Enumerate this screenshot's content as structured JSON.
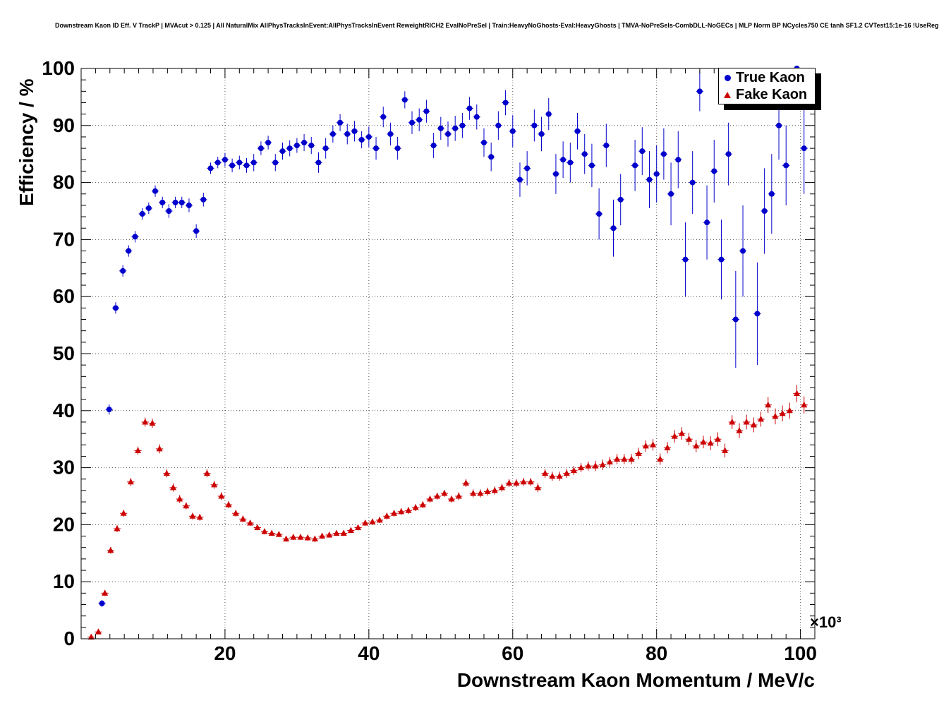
{
  "header": {
    "title": "Downstream Kaon ID Eff. V TrackP | MVAcut > 0.125 | All NaturalMix AllPhysTracksInEvent:AllPhysTracksInEvent ReweightRICH2 EvalNoPreSel | Train:HeavyNoGhosts-Eval:HeavyGhosts | TMVA-NoPreSels-CombDLL-NoGECs | MLP Norm BP NCycles750 CE tanh SF1.2 CVTest15:1e-16 !UseReg"
  },
  "chart_data": {
    "type": "scatter",
    "title": "Downstream Kaon ID Eff. V TrackP | MVAcut > 0.125 | All NaturalMix AllPhysTracksInEvent:AllPhysTracksInEvent ReweightRICH2 EvalNoPreSel | Train:HeavyNoGhosts-Eval:HeavyGhosts | TMVA-NoPreSels-CombDLL-NoGECs | MLP Norm BP NCycles750 CE tanh SF1.2 CVTest15:1e-16 !UseReg",
    "xlabel": "Downstream Kaon Momentum / MeV/c",
    "ylabel": "Efficiency / %",
    "x_multiplier_label": "×10³",
    "x_units_note": "x axis values are in units of 10^3 MeV/c",
    "xlim": [
      0,
      102
    ],
    "ylim": [
      0,
      100
    ],
    "x_ticks": [
      20,
      40,
      60,
      80,
      100
    ],
    "y_ticks": [
      0,
      10,
      20,
      30,
      40,
      50,
      60,
      70,
      80,
      90,
      100
    ],
    "x_minor_step": 2,
    "y_minor_step": 2,
    "grid": true,
    "grid_style": "dotted",
    "bin_half_width": 0.5,
    "legend": {
      "position": "top-right",
      "entries": [
        {
          "label": "True Kaon",
          "marker": "circle",
          "color": "#0000cc"
        },
        {
          "label": "Fake Kaon",
          "marker": "triangle",
          "color": "#cc0000"
        }
      ]
    },
    "series": [
      {
        "name": "True Kaon",
        "color": "#0000cc",
        "marker": "circle",
        "points_format": [
          "x_1e3_MeV",
          "efficiency_pct",
          "err_pct"
        ],
        "points": [
          [
            2.9,
            6.2,
            0.6
          ],
          [
            3.9,
            40.2,
            0.9
          ],
          [
            4.8,
            58,
            1
          ],
          [
            5.8,
            64.5,
            1
          ],
          [
            6.6,
            68,
            1
          ],
          [
            7.5,
            70.5,
            1
          ],
          [
            8.5,
            74.5,
            1
          ],
          [
            9.4,
            75.5,
            1
          ],
          [
            10.3,
            78.5,
            1
          ],
          [
            11.3,
            76.5,
            1
          ],
          [
            12.2,
            75,
            1.2
          ],
          [
            13.1,
            76.5,
            1
          ],
          [
            14,
            76.5,
            1
          ],
          [
            15,
            76,
            1.2
          ],
          [
            16,
            71.5,
            1.2
          ],
          [
            17,
            77,
            1.2
          ],
          [
            18,
            82.5,
            1
          ],
          [
            19,
            83.5,
            1
          ],
          [
            20,
            84,
            1.2
          ],
          [
            21,
            83,
            1.2
          ],
          [
            22,
            83.5,
            1.2
          ],
          [
            23,
            83,
            1.3
          ],
          [
            24,
            83.5,
            1.5
          ],
          [
            25,
            86,
            1.2
          ],
          [
            26,
            87,
            1.2
          ],
          [
            27,
            83.5,
            1.5
          ],
          [
            28,
            85.5,
            1.5
          ],
          [
            29,
            86,
            1.4
          ],
          [
            30,
            86.5,
            1.3
          ],
          [
            31,
            87,
            1.5
          ],
          [
            32,
            86.5,
            1.5
          ],
          [
            33,
            83.5,
            1.8
          ],
          [
            34,
            86,
            1.8
          ],
          [
            35,
            88.5,
            1.5
          ],
          [
            36,
            90.5,
            1.5
          ],
          [
            37,
            88.5,
            1.8
          ],
          [
            38,
            89,
            1.8
          ],
          [
            39,
            87.5,
            1.5
          ],
          [
            40,
            88,
            1.8
          ],
          [
            41,
            86,
            2
          ],
          [
            42,
            91.5,
            1.8
          ],
          [
            43,
            88.5,
            2
          ],
          [
            44,
            86,
            2
          ],
          [
            45,
            94.5,
            1.5
          ],
          [
            46,
            90.5,
            2
          ],
          [
            47,
            91,
            2
          ],
          [
            48,
            92.5,
            2
          ],
          [
            49,
            86.5,
            2.2
          ],
          [
            50,
            89.5,
            2
          ],
          [
            51,
            88.5,
            2.2
          ],
          [
            52,
            89.5,
            2.2
          ],
          [
            53,
            90,
            2.2
          ],
          [
            54,
            93,
            2
          ],
          [
            55,
            91.5,
            2.2
          ],
          [
            56,
            87,
            2.5
          ],
          [
            57,
            84.5,
            2.5
          ],
          [
            58,
            90,
            2.5
          ],
          [
            59,
            94,
            2.2
          ],
          [
            60,
            89,
            2.8
          ],
          [
            61,
            80.5,
            3
          ],
          [
            62,
            82.5,
            3
          ],
          [
            63,
            90,
            2.8
          ],
          [
            64,
            88.5,
            3
          ],
          [
            65,
            92,
            2.8
          ],
          [
            66,
            81.5,
            3.5
          ],
          [
            67,
            84,
            3.2
          ],
          [
            68,
            83.5,
            3.5
          ],
          [
            69,
            89,
            3.2
          ],
          [
            70,
            85,
            3.5
          ],
          [
            71,
            83,
            3.8
          ],
          [
            72,
            74.5,
            4.5
          ],
          [
            73,
            86.5,
            3.8
          ],
          [
            74,
            72,
            5
          ],
          [
            75,
            77,
            4.5
          ],
          [
            77,
            83,
            4.5
          ],
          [
            78,
            85.5,
            4.2
          ],
          [
            79,
            80.5,
            5
          ],
          [
            80,
            81.5,
            5
          ],
          [
            81,
            85,
            4.5
          ],
          [
            82,
            78,
            5.5
          ],
          [
            83,
            84,
            5
          ],
          [
            84,
            66.5,
            6.5
          ],
          [
            85,
            80,
            5.5
          ],
          [
            86,
            96,
            3.5
          ],
          [
            87,
            73,
            6.5
          ],
          [
            88,
            82,
            5.5
          ],
          [
            89,
            66.5,
            7
          ],
          [
            90,
            85,
            5.5
          ],
          [
            91,
            56,
            8.5
          ],
          [
            92,
            68,
            8
          ],
          [
            94,
            57,
            9
          ],
          [
            95,
            75,
            7.5
          ],
          [
            96,
            78,
            7
          ],
          [
            97,
            90,
            6
          ],
          [
            98,
            83,
            7
          ],
          [
            99.5,
            100,
            6
          ],
          [
            100.5,
            86,
            8
          ]
        ]
      },
      {
        "name": "Fake Kaon",
        "color": "#cc0000",
        "marker": "triangle",
        "points_format": [
          "x_1e3_MeV",
          "efficiency_pct",
          "err_pct"
        ],
        "points": [
          [
            1.4,
            0.3,
            0.2
          ],
          [
            2.4,
            1.2,
            0.3
          ],
          [
            3.3,
            8,
            0.5
          ],
          [
            4.1,
            15.5,
            0.6
          ],
          [
            5,
            19.3,
            0.6
          ],
          [
            5.9,
            22,
            0.6
          ],
          [
            6.9,
            27.5,
            0.7
          ],
          [
            7.9,
            33,
            0.7
          ],
          [
            8.9,
            38,
            0.8
          ],
          [
            9.9,
            37.8,
            0.8
          ],
          [
            10.9,
            33.3,
            0.8
          ],
          [
            11.9,
            29,
            0.7
          ],
          [
            12.8,
            26.5,
            0.7
          ],
          [
            13.7,
            24.5,
            0.7
          ],
          [
            14.6,
            23.3,
            0.6
          ],
          [
            15.5,
            21.5,
            0.6
          ],
          [
            16.5,
            21.3,
            0.6
          ],
          [
            17.5,
            29,
            0.7
          ],
          [
            18.5,
            27,
            0.7
          ],
          [
            19.5,
            25,
            0.7
          ],
          [
            20.5,
            23.5,
            0.6
          ],
          [
            21.5,
            22,
            0.6
          ],
          [
            22.5,
            21,
            0.6
          ],
          [
            23.5,
            20.3,
            0.5
          ],
          [
            24.5,
            19.5,
            0.5
          ],
          [
            25.5,
            18.8,
            0.5
          ],
          [
            26.5,
            18.5,
            0.5
          ],
          [
            27.5,
            18.3,
            0.5
          ],
          [
            28.5,
            17.5,
            0.5
          ],
          [
            29.5,
            17.8,
            0.5
          ],
          [
            30.5,
            17.8,
            0.5
          ],
          [
            31.5,
            17.7,
            0.5
          ],
          [
            32.5,
            17.5,
            0.5
          ],
          [
            33.5,
            18,
            0.5
          ],
          [
            34.5,
            18.2,
            0.5
          ],
          [
            35.5,
            18.5,
            0.5
          ],
          [
            36.5,
            18.5,
            0.5
          ],
          [
            37.5,
            19,
            0.5
          ],
          [
            38.5,
            19.5,
            0.5
          ],
          [
            39.5,
            20.3,
            0.5
          ],
          [
            40.5,
            20.5,
            0.5
          ],
          [
            41.5,
            20.8,
            0.5
          ],
          [
            42.5,
            21.5,
            0.6
          ],
          [
            43.5,
            22,
            0.6
          ],
          [
            44.5,
            22.3,
            0.6
          ],
          [
            45.5,
            22.5,
            0.6
          ],
          [
            46.5,
            23,
            0.6
          ],
          [
            47.5,
            23.5,
            0.6
          ],
          [
            48.5,
            24.5,
            0.6
          ],
          [
            49.5,
            25,
            0.6
          ],
          [
            50.5,
            25.5,
            0.6
          ],
          [
            51.5,
            24.5,
            0.6
          ],
          [
            52.5,
            25,
            0.7
          ],
          [
            53.5,
            27.3,
            0.7
          ],
          [
            54.5,
            25.5,
            0.7
          ],
          [
            55.5,
            25.5,
            0.7
          ],
          [
            56.5,
            25.8,
            0.7
          ],
          [
            57.5,
            26,
            0.7
          ],
          [
            58.5,
            26.5,
            0.7
          ],
          [
            59.5,
            27.3,
            0.7
          ],
          [
            60.5,
            27.3,
            0.7
          ],
          [
            61.5,
            27.5,
            0.7
          ],
          [
            62.5,
            27.5,
            0.7
          ],
          [
            63.5,
            26.5,
            0.8
          ],
          [
            64.5,
            29,
            0.8
          ],
          [
            65.5,
            28.5,
            0.8
          ],
          [
            66.5,
            28.5,
            0.8
          ],
          [
            67.5,
            29,
            0.8
          ],
          [
            68.5,
            29.5,
            0.8
          ],
          [
            69.5,
            30,
            0.8
          ],
          [
            70.5,
            30.3,
            0.8
          ],
          [
            71.5,
            30.3,
            0.9
          ],
          [
            72.5,
            30.5,
            0.9
          ],
          [
            73.5,
            31,
            0.9
          ],
          [
            74.5,
            31.5,
            0.9
          ],
          [
            75.5,
            31.5,
            0.9
          ],
          [
            76.5,
            31.5,
            0.9
          ],
          [
            77.5,
            32.5,
            1
          ],
          [
            78.5,
            33.8,
            1
          ],
          [
            79.5,
            34,
            1
          ],
          [
            80.5,
            31.5,
            1
          ],
          [
            81.5,
            33.5,
            1
          ],
          [
            82.5,
            35.5,
            1.1
          ],
          [
            83.5,
            36,
            1.1
          ],
          [
            84.5,
            35,
            1.1
          ],
          [
            85.5,
            33.8,
            1.1
          ],
          [
            86.5,
            34.5,
            1.1
          ],
          [
            87.5,
            34.3,
            1.2
          ],
          [
            88.5,
            35,
            1.2
          ],
          [
            89.5,
            33,
            1.2
          ],
          [
            90.5,
            38,
            1.2
          ],
          [
            91.5,
            36.5,
            1.3
          ],
          [
            92.5,
            38,
            1.3
          ],
          [
            93.5,
            37.5,
            1.3
          ],
          [
            94.5,
            38.5,
            1.3
          ],
          [
            95.5,
            41,
            1.4
          ],
          [
            96.5,
            39,
            1.4
          ],
          [
            97.5,
            39.5,
            1.4
          ],
          [
            98.5,
            40,
            1.4
          ],
          [
            99.5,
            43,
            1.5
          ],
          [
            100.5,
            41,
            1.5
          ]
        ]
      }
    ]
  }
}
